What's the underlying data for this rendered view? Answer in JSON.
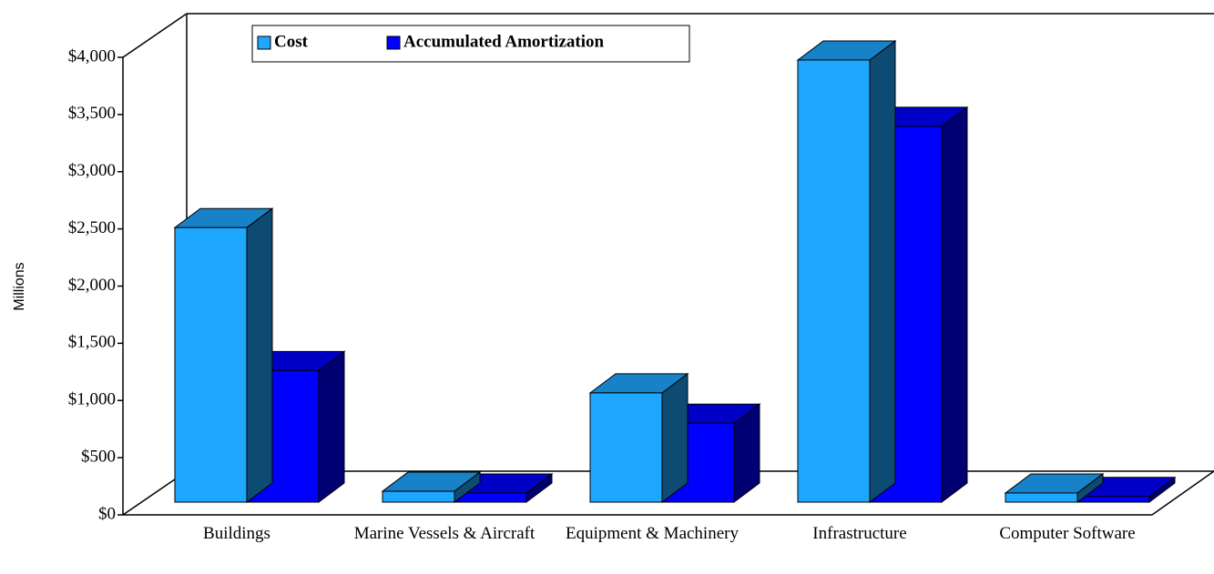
{
  "chart_data": {
    "type": "bar3d",
    "y_label": "Millions",
    "categories": [
      "Buildings",
      "Marine Vessels & Aircraft",
      "Equipment & Machinery",
      "Infrastructure",
      "Computer Software"
    ],
    "series": [
      {
        "name": "Cost",
        "color": "#1ea7ff",
        "values": [
          2400,
          95,
          955,
          3865,
          80
        ]
      },
      {
        "name": "Accumulated Amortization",
        "color": "#0000ff",
        "values": [
          1150,
          80,
          690,
          3285,
          50
        ]
      }
    ],
    "ylim": [
      0,
      4000
    ],
    "yticks": [
      {
        "value": 0,
        "label": "$0"
      },
      {
        "value": 500,
        "label": "$500"
      },
      {
        "value": 1000,
        "label": "$1,000"
      },
      {
        "value": 1500,
        "label": "$1,500"
      },
      {
        "value": 2000,
        "label": "$2,000"
      },
      {
        "value": 2500,
        "label": "$2,500"
      },
      {
        "value": 3000,
        "label": "$3,000"
      },
      {
        "value": 3500,
        "label": "$3,500"
      },
      {
        "value": 4000,
        "label": "$4,000"
      }
    ]
  }
}
